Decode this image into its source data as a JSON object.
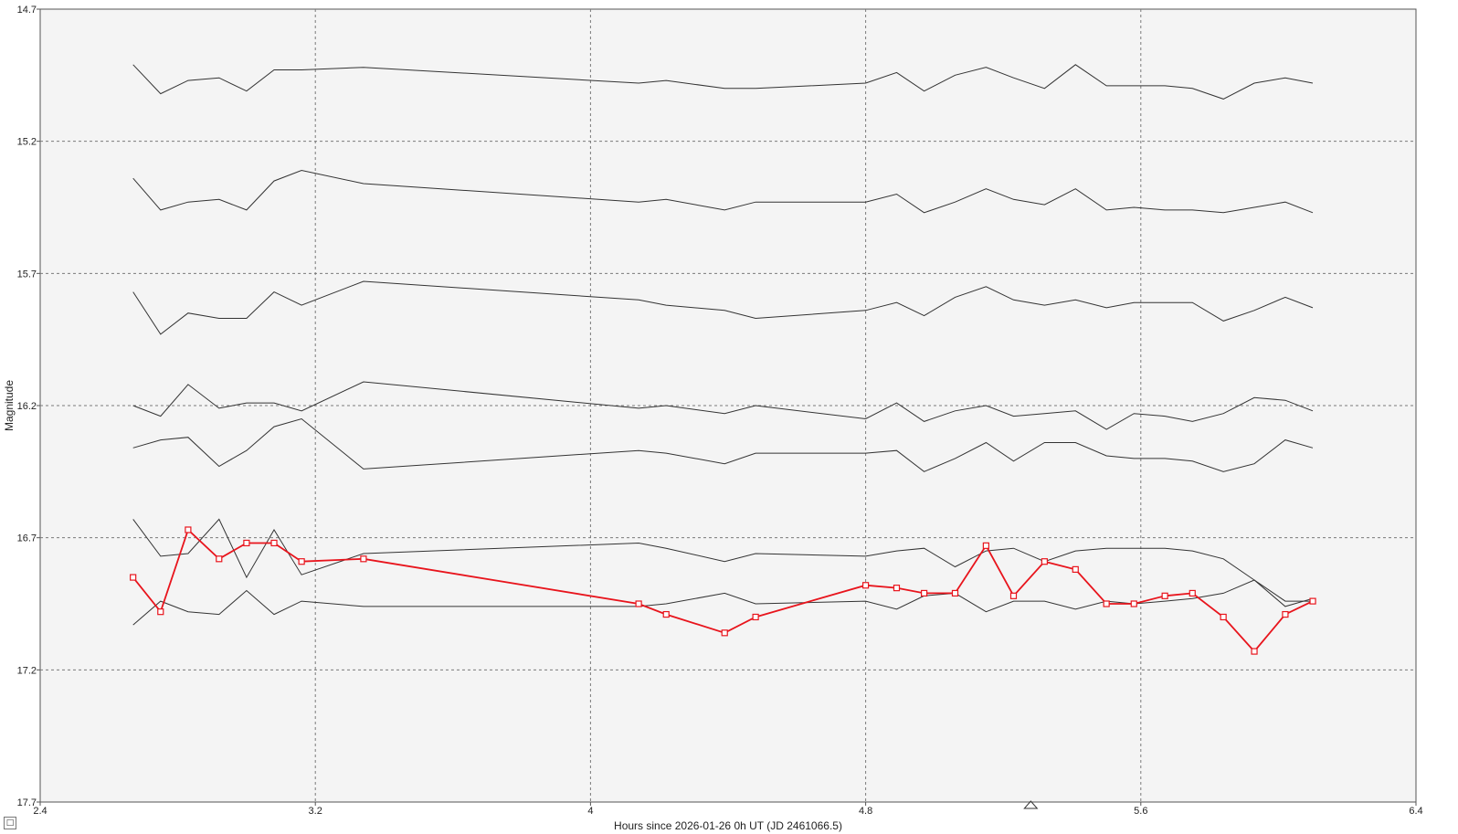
{
  "chart_data": {
    "type": "line",
    "title": "",
    "xlabel": "Hours since 2026-01-26 0h UT (JD 2461066.5)",
    "ylabel": "Magnitude",
    "xlim": [
      2.4,
      6.4
    ],
    "ylim": [
      14.7,
      17.7
    ],
    "y_inverted": true,
    "x_ticks": [
      "2.4",
      "3.2",
      "4",
      "4.8",
      "5.6",
      "6.4"
    ],
    "y_ticks": [
      "14.7",
      "15.2",
      "15.7",
      "16.2",
      "16.7",
      "17.2",
      "17.7"
    ],
    "grid": true,
    "marker_x": 5.28,
    "series": [
      {
        "color": "#333333",
        "x": [
          2.67,
          2.75,
          2.83,
          2.92,
          3.0,
          3.08,
          3.16,
          3.34,
          4.14,
          4.22,
          4.39,
          4.48,
          4.8,
          4.89,
          4.97,
          5.06,
          5.15,
          5.23,
          5.32,
          5.41,
          5.5,
          5.58,
          5.67,
          5.75,
          5.84,
          5.93,
          6.02,
          6.1
        ],
        "y": [
          14.91,
          15.02,
          14.97,
          14.96,
          15.01,
          14.93,
          14.93,
          14.92,
          14.98,
          14.97,
          15.0,
          15.0,
          14.98,
          14.94,
          15.01,
          14.95,
          14.92,
          14.96,
          15.0,
          14.91,
          14.99,
          14.99,
          14.99,
          15.0,
          15.04,
          14.98,
          14.96,
          14.98
        ]
      },
      {
        "color": "#333333",
        "x": [
          2.67,
          2.75,
          2.83,
          2.92,
          3.0,
          3.08,
          3.16,
          3.34,
          4.14,
          4.22,
          4.39,
          4.48,
          4.8,
          4.89,
          4.97,
          5.06,
          5.15,
          5.23,
          5.32,
          5.41,
          5.5,
          5.58,
          5.67,
          5.75,
          5.84,
          5.93,
          6.02,
          6.1
        ],
        "y": [
          15.34,
          15.46,
          15.43,
          15.42,
          15.46,
          15.35,
          15.31,
          15.36,
          15.43,
          15.42,
          15.46,
          15.43,
          15.43,
          15.4,
          15.47,
          15.43,
          15.38,
          15.42,
          15.44,
          15.38,
          15.46,
          15.45,
          15.46,
          15.46,
          15.47,
          15.45,
          15.43,
          15.47
        ]
      },
      {
        "color": "#333333",
        "x": [
          2.67,
          2.75,
          2.83,
          2.92,
          3.0,
          3.08,
          3.16,
          3.34,
          4.14,
          4.22,
          4.39,
          4.48,
          4.8,
          4.89,
          4.97,
          5.06,
          5.15,
          5.23,
          5.32,
          5.41,
          5.5,
          5.58,
          5.67,
          5.75,
          5.84,
          5.93,
          6.02,
          6.1
        ],
        "y": [
          15.77,
          15.93,
          15.85,
          15.87,
          15.87,
          15.77,
          15.82,
          15.73,
          15.8,
          15.82,
          15.84,
          15.87,
          15.84,
          15.81,
          15.86,
          15.79,
          15.75,
          15.8,
          15.82,
          15.8,
          15.83,
          15.81,
          15.81,
          15.81,
          15.88,
          15.84,
          15.79,
          15.83
        ]
      },
      {
        "color": "#333333",
        "x": [
          2.67,
          2.75,
          2.83,
          2.92,
          3.0,
          3.08,
          3.16,
          3.34,
          4.14,
          4.22,
          4.39,
          4.48,
          4.8,
          4.89,
          4.97,
          5.06,
          5.15,
          5.23,
          5.32,
          5.41,
          5.5,
          5.58,
          5.67,
          5.75,
          5.84,
          5.93,
          6.02,
          6.1
        ],
        "y": [
          16.2,
          16.24,
          16.12,
          16.21,
          16.19,
          16.19,
          16.22,
          16.11,
          16.21,
          16.2,
          16.23,
          16.2,
          16.25,
          16.19,
          16.26,
          16.22,
          16.2,
          16.24,
          16.23,
          16.22,
          16.29,
          16.23,
          16.24,
          16.26,
          16.23,
          16.17,
          16.18,
          16.22
        ]
      },
      {
        "color": "#333333",
        "x": [
          2.67,
          2.75,
          2.83,
          2.92,
          3.0,
          3.08,
          3.16,
          3.34,
          4.14,
          4.22,
          4.39,
          4.48,
          4.8,
          4.89,
          4.97,
          5.06,
          5.15,
          5.23,
          5.32,
          5.41,
          5.5,
          5.58,
          5.67,
          5.75,
          5.84,
          5.93,
          6.02,
          6.1
        ],
        "y": [
          16.36,
          16.33,
          16.32,
          16.43,
          16.37,
          16.28,
          16.25,
          16.44,
          16.37,
          16.38,
          16.42,
          16.38,
          16.38,
          16.37,
          16.45,
          16.4,
          16.34,
          16.41,
          16.34,
          16.34,
          16.39,
          16.4,
          16.4,
          16.41,
          16.45,
          16.42,
          16.33,
          16.36
        ]
      },
      {
        "color": "#333333",
        "x": [
          2.67,
          2.75,
          2.83,
          2.92,
          3.0,
          3.08,
          3.16,
          3.34,
          4.14,
          4.22,
          4.39,
          4.48,
          4.8,
          4.89,
          4.97,
          5.06,
          5.15,
          5.23,
          5.32,
          5.41,
          5.5,
          5.58,
          5.67,
          5.75,
          5.84,
          5.93,
          6.02,
          6.1
        ],
        "y": [
          16.63,
          16.77,
          16.76,
          16.63,
          16.85,
          16.67,
          16.84,
          16.76,
          16.72,
          16.74,
          16.79,
          16.76,
          16.77,
          16.75,
          16.74,
          16.81,
          16.75,
          16.74,
          16.79,
          16.75,
          16.74,
          16.74,
          16.74,
          16.75,
          16.78,
          16.86,
          16.94,
          16.94
        ]
      },
      {
        "color": "#333333",
        "x": [
          2.67,
          2.75,
          2.83,
          2.92,
          3.0,
          3.08,
          3.16,
          3.34,
          4.14,
          4.22,
          4.39,
          4.48,
          4.8,
          4.89,
          4.97,
          5.06,
          5.15,
          5.23,
          5.32,
          5.41,
          5.5,
          5.58,
          5.67,
          5.75,
          5.84,
          5.93,
          6.02,
          6.1
        ],
        "y": [
          17.03,
          16.94,
          16.98,
          16.99,
          16.9,
          16.99,
          16.94,
          16.96,
          16.96,
          16.95,
          16.91,
          16.95,
          16.94,
          16.97,
          16.92,
          16.91,
          16.98,
          16.94,
          16.94,
          16.97,
          16.94,
          16.95,
          16.94,
          16.93,
          16.91,
          16.86,
          16.96,
          16.93
        ]
      },
      {
        "color": "#e8141c",
        "x": [
          2.67,
          2.75,
          2.83,
          2.92,
          3.0,
          3.08,
          3.16,
          3.34,
          4.14,
          4.22,
          4.39,
          4.48,
          4.8,
          4.89,
          4.97,
          5.06,
          5.15,
          5.23,
          5.32,
          5.41,
          5.5,
          5.58,
          5.67,
          5.75,
          5.84,
          5.93,
          6.02,
          6.1
        ],
        "y": [
          16.85,
          16.98,
          16.67,
          16.78,
          16.72,
          16.72,
          16.79,
          16.78,
          16.95,
          16.99,
          17.06,
          17.0,
          16.88,
          16.89,
          16.91,
          16.91,
          16.73,
          16.92,
          16.79,
          16.82,
          16.95,
          16.95,
          16.92,
          16.91,
          17.0,
          17.13,
          16.99,
          16.94
        ]
      }
    ]
  },
  "icons": {
    "corner_button": "square-icon",
    "marker": "triangle-marker-icon"
  },
  "colors": {
    "plot_background": "#f4f4f4",
    "grid": "#7a7a7a",
    "reference_series": "#333333",
    "target_series": "#e8141c"
  },
  "corner_button_glyph": "□"
}
